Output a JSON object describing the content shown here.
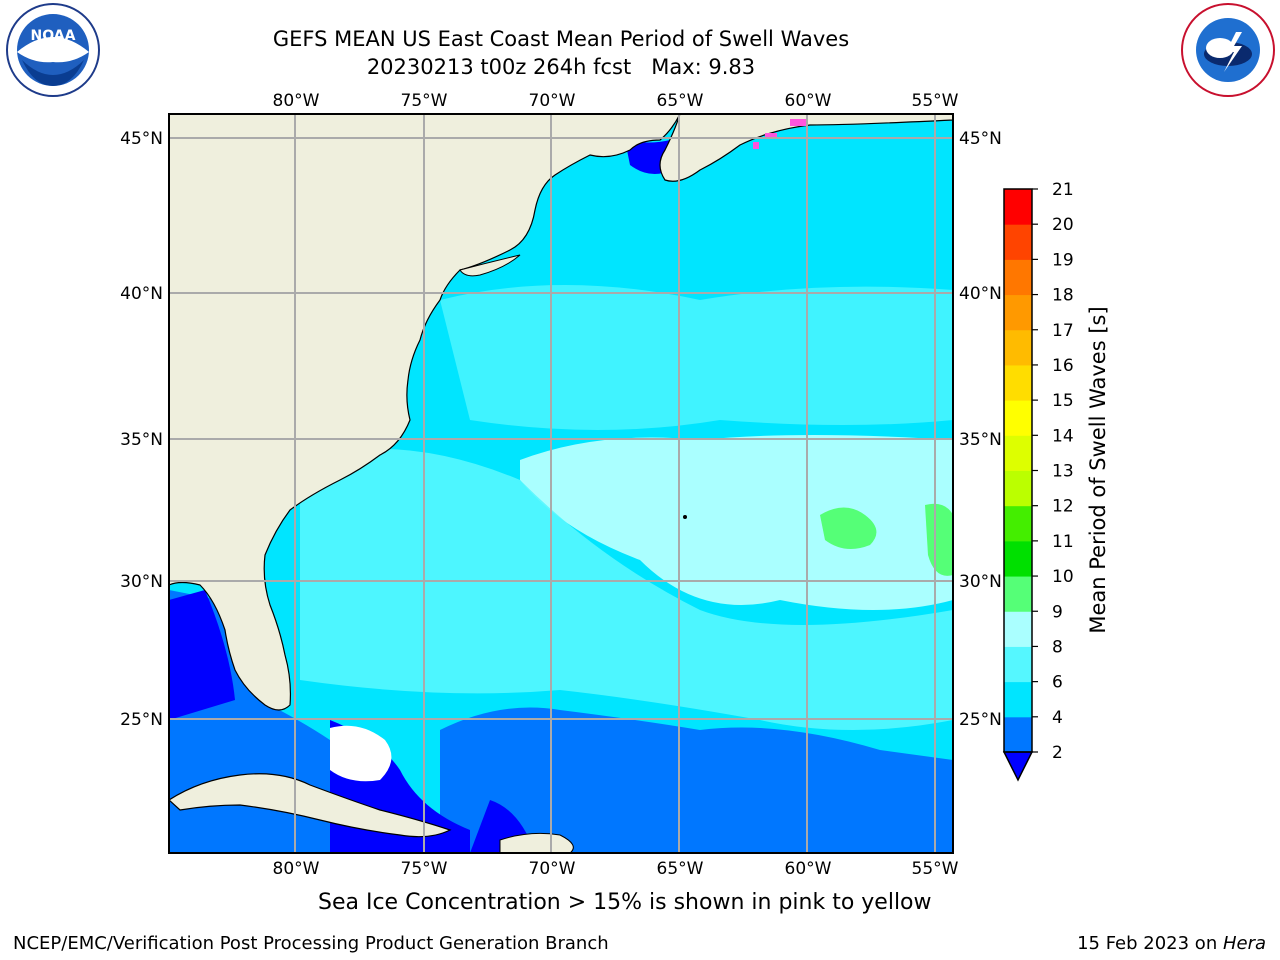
{
  "title": {
    "line1": "GEFS MEAN US East Coast Mean Period of Swell Waves",
    "line2": "20230213 t00z 264h fcst   Max: 9.83"
  },
  "logos": {
    "left": "noaa-logo",
    "left_text": "NOAA",
    "right": "nws-logo",
    "right_text": "NATIONAL WEATHER SERVICE"
  },
  "map": {
    "lon_labels": [
      "80°W",
      "75°W",
      "70°W",
      "65°W",
      "60°W",
      "55°W"
    ],
    "lat_labels": [
      "45°N",
      "40°N",
      "35°N",
      "30°N",
      "25°N"
    ]
  },
  "colorbar": {
    "label": "Mean Period of Swell Waves [s]",
    "ticks": [
      "2",
      "4",
      "6",
      "8",
      "9",
      "10",
      "11",
      "12",
      "13",
      "14",
      "15",
      "16",
      "17",
      "18",
      "19",
      "20",
      "21"
    ],
    "colors": {
      "blue_dark": "#0000ff",
      "blue": "#0077ff",
      "cyan": "#00e5ff",
      "cyan_light": "#55f7ff",
      "cyan_pale": "#aaffff",
      "green_light": "#55ff77",
      "green": "#00e000",
      "green_mid": "#44ee00",
      "yellow_green": "#bbff00",
      "yellow_green2": "#ddff00",
      "yellow": "#ffff00",
      "yellow_orange": "#ffdd00",
      "orange_light": "#ffbb00",
      "orange": "#ff9900",
      "orange_red": "#ff7700",
      "red_orange": "#ff4400",
      "red": "#ff0000"
    }
  },
  "caption": "Sea Ice Concentration > 15% is shown in pink to yellow",
  "footer": {
    "left": "NCEP/EMC/Verification Post Processing Product Generation Branch",
    "right_date": "15 Feb 2023 on ",
    "right_host": "Hera"
  }
}
